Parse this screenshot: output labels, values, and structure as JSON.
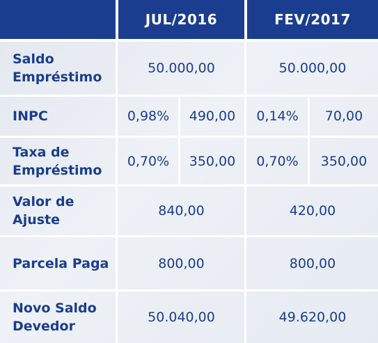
{
  "header": {
    "col1": "JUL/2016",
    "col2": "FEV/2017"
  },
  "rows": [
    {
      "label": "Saldo Empréstimo",
      "jul": "50.000,00",
      "fev": "50.000,00"
    },
    {
      "label": "INPC",
      "jul_pct": "0,98%",
      "jul_val": "490,00",
      "fev_pct": "0,14%",
      "fev_val": "70,00"
    },
    {
      "label": "Taxa de Empréstimo",
      "jul_pct": "0,70%",
      "jul_val": "350,00",
      "fev_pct": "0,70%",
      "fev_val": "350,00"
    },
    {
      "label": "Valor de Ajuste",
      "jul": "840,00",
      "fev": "420,00"
    },
    {
      "label": "Parcela Paga",
      "jul": "800,00",
      "fev": "800,00"
    },
    {
      "label": "Novo Saldo Devedor",
      "jul": "50.040,00",
      "fev": "49.620,00"
    }
  ],
  "colors": {
    "header_bg": "#1a3d8f",
    "text": "#1a3d8f",
    "body_bg": "#e8ecf2"
  }
}
